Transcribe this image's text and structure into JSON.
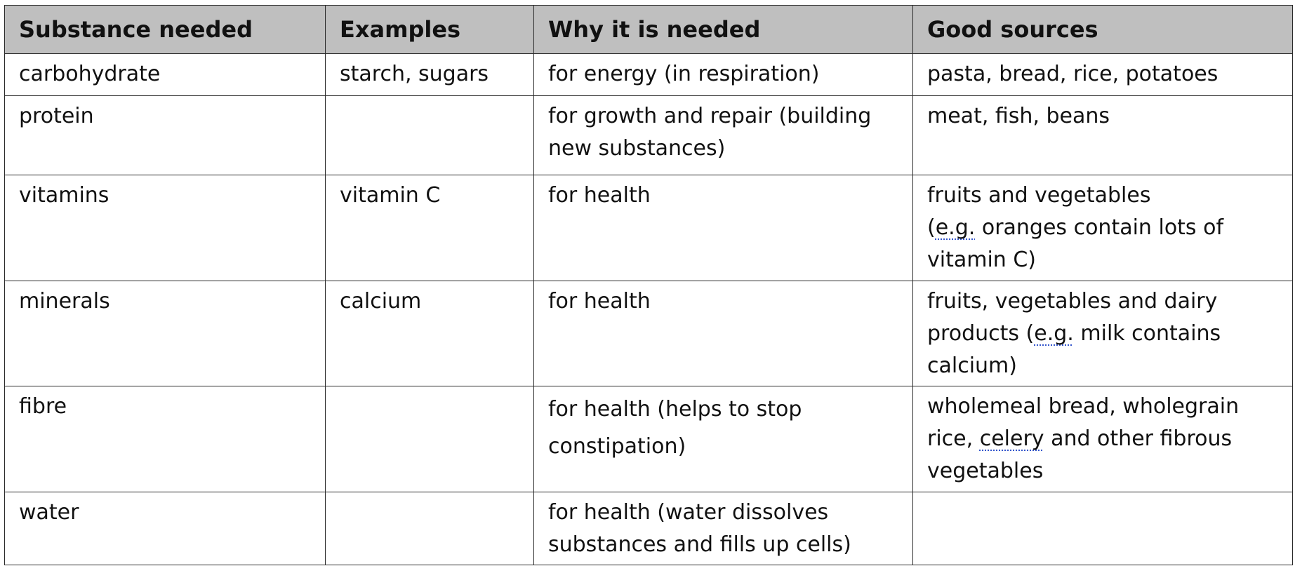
{
  "table": {
    "headers": [
      "Substance needed",
      "Examples",
      "Why it is needed",
      "Good sources"
    ],
    "rows": [
      {
        "substance": "carbohydrate",
        "examples": "starch, sugars",
        "why": "for energy (in respiration)",
        "sources": {
          "pre": "pasta, bread, rice, potatoes",
          "mark": "",
          "post": ""
        }
      },
      {
        "substance": "protein",
        "examples": "",
        "why": "for growth and repair (building new substances)",
        "sources": {
          "pre": "meat, fish, beans",
          "mark": "",
          "post": ""
        }
      },
      {
        "substance": "vitamins",
        "examples": "vitamin C",
        "why": "for health",
        "sources": {
          "line1": "fruits and vegetables",
          "pre": "(",
          "mark": "e.g.",
          "post": " oranges contain lots of vitamin C)"
        }
      },
      {
        "substance": "minerals",
        "examples": "calcium",
        "why": "for health",
        "sources": {
          "pre": "fruits, vegetables and dairy products (",
          "mark": "e.g.",
          "post": " milk contains calcium)"
        }
      },
      {
        "substance": "fibre",
        "examples": "",
        "why": "for health (helps to stop constipation)",
        "sources": {
          "pre": "wholemeal bread, wholegrain rice, ",
          "mark": "celery",
          "post": " and other fibrous vegetables"
        }
      },
      {
        "substance": "water",
        "examples": "",
        "why": "for health (water dissolves substances and fills up cells)",
        "sources": {
          "pre": "",
          "mark": "",
          "post": ""
        }
      }
    ]
  }
}
